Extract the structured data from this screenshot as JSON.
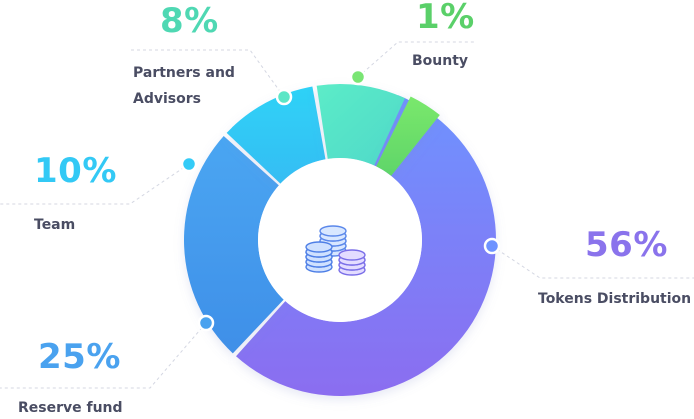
{
  "chart_data": {
    "type": "pie",
    "style": "donut",
    "legend": "none",
    "slices": [
      {
        "label": "Tokens Distribution",
        "value": 56,
        "value_label": "56%",
        "color": "#8b74ee",
        "color_light": "#6e93ff",
        "label_color": "#8a73ec"
      },
      {
        "label": "Reserve fund",
        "value": 25,
        "value_label": "25%",
        "color": "#4da0f2",
        "color_light": "#4aa2ef",
        "label_color": "#4aa2ef"
      },
      {
        "label": "Team",
        "value": 10,
        "value_label": "10%",
        "color": "#2fc8f4",
        "color_light": "#33cbf7",
        "label_color": "#33c9f5"
      },
      {
        "label": "Partners and Advisors",
        "value": 8,
        "value_label": "8%",
        "color": "#54e3c6",
        "color_light": "#5ce6c6",
        "label_color": "#4fd8b3"
      },
      {
        "label": "Bounty",
        "value": 1,
        "value_label": "1%",
        "color": "#6ee06b",
        "color_light": "#7ae574",
        "label_color": "#5ad069"
      }
    ],
    "center_icon": "coin-stack-icon"
  }
}
